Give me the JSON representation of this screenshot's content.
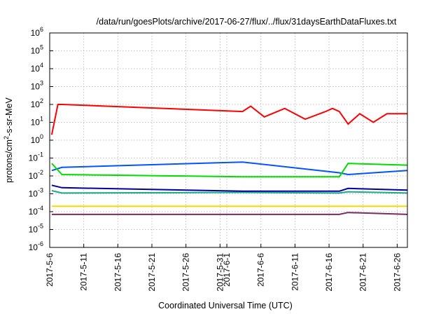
{
  "chart_data": {
    "type": "line",
    "title": "/data/run/goesPlots/archive/2017-06-27/flux/../flux/31daysEarthDataFluxes.txt",
    "xlabel": "Coordinated Universal Time (UTC)",
    "ylabel_parts": [
      "protons/cm",
      "2",
      "-s-sr-MeV"
    ],
    "yscale": "log",
    "ylim": [
      1e-06,
      1000000.0
    ],
    "xlim_days": [
      0,
      52.5
    ],
    "grid": true,
    "y_ticks": [
      {
        "exp": -6,
        "base": "10",
        "pow": "-6"
      },
      {
        "exp": -5,
        "base": "10",
        "pow": "-5"
      },
      {
        "exp": -4,
        "base": "10",
        "pow": "-4"
      },
      {
        "exp": -3,
        "base": "10",
        "pow": "-3"
      },
      {
        "exp": -2,
        "base": "10",
        "pow": "-2"
      },
      {
        "exp": -1,
        "base": "10",
        "pow": "-1"
      },
      {
        "exp": 0,
        "base": "10",
        "pow": "0"
      },
      {
        "exp": 1,
        "base": "10",
        "pow": "1"
      },
      {
        "exp": 2,
        "base": "10",
        "pow": "2"
      },
      {
        "exp": 3,
        "base": "10",
        "pow": "3"
      },
      {
        "exp": 4,
        "base": "10",
        "pow": "4"
      },
      {
        "exp": 5,
        "base": "10",
        "pow": "5"
      },
      {
        "exp": 6,
        "base": "10",
        "pow": "6"
      }
    ],
    "x_ticks": [
      {
        "day": 0,
        "label": "2017-5-6"
      },
      {
        "day": 5,
        "label": "2017-5-11"
      },
      {
        "day": 10,
        "label": "2017-5-16"
      },
      {
        "day": 15,
        "label": "2017-5-21"
      },
      {
        "day": 20,
        "label": "2017-5-26"
      },
      {
        "day": 25,
        "label": "2017-5-31"
      },
      {
        "day": 26,
        "label": "2017-6-1"
      },
      {
        "day": 31,
        "label": "2017-6-6"
      },
      {
        "day": 36,
        "label": "2017-6-11"
      },
      {
        "day": 41,
        "label": "2017-6-16"
      },
      {
        "day": 46,
        "label": "2017-6-21"
      },
      {
        "day": 51,
        "label": "2017-6-26"
      }
    ],
    "series": [
      {
        "color": "#7b2c5a",
        "x": [
          0.3,
          1.8,
          28.3,
          42.5,
          43.8,
          52.5
        ],
        "y": [
          7e-05,
          7e-05,
          7e-05,
          7e-05,
          9e-05,
          7e-05
        ]
      },
      {
        "color": "#ffd700",
        "x": [
          0.3,
          1.8,
          28.3,
          42.5,
          43.8,
          52.5
        ],
        "y": [
          0.0002,
          0.0002,
          0.0002,
          0.0002,
          0.0002,
          0.0002
        ]
      },
      {
        "color": "#1aaa8a",
        "x": [
          0.3,
          1.8,
          28.3,
          42.5,
          43.8,
          52.5
        ],
        "y": [
          0.0015,
          0.0011,
          0.0012,
          0.0011,
          0.0013,
          0.0011
        ]
      },
      {
        "color": "#0000a0",
        "x": [
          0.3,
          1.8,
          28.3,
          42.5,
          43.8,
          52.5
        ],
        "y": [
          0.003,
          0.0022,
          0.0014,
          0.0014,
          0.002,
          0.0016
        ]
      },
      {
        "color": "#0055ff",
        "x": [
          0.3,
          1.8,
          28.3,
          42.5,
          43.8,
          52.5
        ],
        "y": [
          0.02,
          0.03,
          0.06,
          0.015,
          0.012,
          0.02
        ]
      },
      {
        "color": "#00dd00",
        "x": [
          0.3,
          1.8,
          28.3,
          42.5,
          43.8,
          52.5
        ],
        "y": [
          0.05,
          0.012,
          0.009,
          0.009,
          0.05,
          0.04
        ]
      },
      {
        "color": "#ff0000",
        "x": [
          0.3,
          1.2,
          1.8,
          28.3,
          29.5,
          31.5,
          34.5,
          37.5,
          40.5,
          41.5,
          42.5,
          43.8,
          45.5,
          47.5,
          49.5,
          52.5
        ],
        "y": [
          2,
          100,
          100,
          40,
          80,
          20,
          60,
          15,
          40,
          60,
          40,
          8,
          30,
          10,
          30,
          30
        ]
      }
    ]
  }
}
